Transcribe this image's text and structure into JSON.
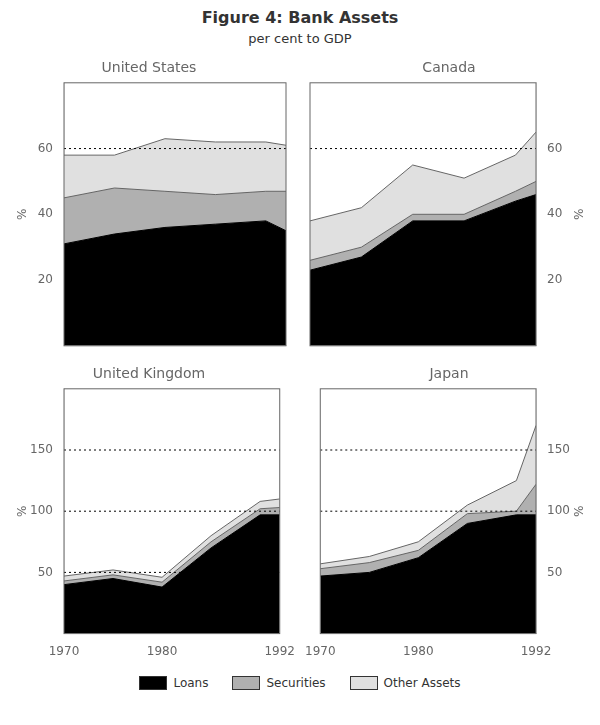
{
  "title": "Figure 4: Bank Assets",
  "subtitle": "per cent to GDP",
  "chart_data": [
    {
      "type": "area",
      "title": "United States",
      "x": [
        1970,
        1975,
        1980,
        1985,
        1990,
        1992
      ],
      "xlim": [
        1970,
        1992
      ],
      "xticks": [
        1970,
        1980,
        1992
      ],
      "ylim": [
        0,
        80
      ],
      "yticks": [
        20,
        40,
        60
      ],
      "y_label": "%",
      "grid": false,
      "tick_labels": "y",
      "reference_lines": [
        60
      ],
      "series": [
        {
          "name": "Loans",
          "color": "#000000",
          "values": [
            31,
            34,
            36,
            37,
            38,
            35
          ]
        },
        {
          "name": "Securities",
          "color": "#b0b0b0",
          "values": [
            45,
            48,
            47,
            46,
            47,
            47
          ]
        },
        {
          "name": "Other Assets",
          "color": "#e0e0e0",
          "values": [
            58,
            58,
            63,
            62,
            62,
            61
          ]
        }
      ]
    },
    {
      "type": "area",
      "title": "Canada",
      "x": [
        1970,
        1975,
        1980,
        1985,
        1990,
        1992
      ],
      "xlim": [
        1970,
        1992
      ],
      "xticks": [
        1970,
        1980,
        1992
      ],
      "ylim": [
        0,
        80
      ],
      "yticks": [
        20,
        40,
        60
      ],
      "y_label": "%",
      "grid": false,
      "tick_labels": "y",
      "reference_lines": [
        60
      ],
      "series": [
        {
          "name": "Loans",
          "color": "#000000",
          "values": [
            23,
            27,
            38,
            38,
            44,
            46
          ]
        },
        {
          "name": "Securities",
          "color": "#b0b0b0",
          "values": [
            26,
            30,
            40,
            40,
            47,
            50
          ]
        },
        {
          "name": "Other Assets",
          "color": "#e0e0e0",
          "values": [
            38,
            42,
            55,
            51,
            58,
            65
          ]
        }
      ]
    },
    {
      "type": "area",
      "title": "United Kingdom",
      "x": [
        1970,
        1975,
        1980,
        1985,
        1990,
        1992
      ],
      "xlim": [
        1970,
        1992
      ],
      "xticks": [
        1970,
        1980,
        1992
      ],
      "ylim": [
        0,
        200
      ],
      "yticks": [
        50,
        100,
        150
      ],
      "y_label": "%",
      "grid": false,
      "tick_labels": true,
      "reference_lines": [
        50,
        100,
        150
      ],
      "series": [
        {
          "name": "Loans",
          "color": "#000000",
          "values": [
            40,
            45,
            38,
            70,
            97,
            97
          ]
        },
        {
          "name": "Securities",
          "color": "#b0b0b0",
          "values": [
            43,
            48,
            42,
            75,
            102,
            103
          ]
        },
        {
          "name": "Other Assets",
          "color": "#e0e0e0",
          "values": [
            47,
            52,
            46,
            80,
            108,
            110
          ]
        }
      ]
    },
    {
      "type": "area",
      "title": "Japan",
      "x": [
        1970,
        1975,
        1980,
        1985,
        1990,
        1992
      ],
      "xlim": [
        1970,
        1992
      ],
      "xticks": [
        1970,
        1980,
        1992
      ],
      "ylim": [
        0,
        200
      ],
      "yticks": [
        50,
        100,
        150
      ],
      "y_label": "%",
      "grid": false,
      "tick_labels": true,
      "reference_lines": [
        100,
        150
      ],
      "series": [
        {
          "name": "Loans",
          "color": "#000000",
          "values": [
            47,
            50,
            62,
            90,
            97,
            97
          ]
        },
        {
          "name": "Securities",
          "color": "#b0b0b0",
          "values": [
            53,
            58,
            68,
            98,
            100,
            122
          ]
        },
        {
          "name": "Other Assets",
          "color": "#e0e0e0",
          "values": [
            57,
            63,
            75,
            105,
            125,
            170
          ]
        }
      ]
    }
  ]
}
